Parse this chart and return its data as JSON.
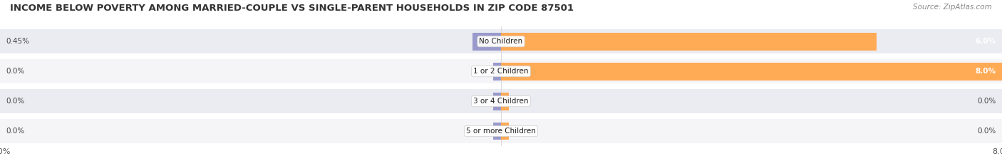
{
  "title": "INCOME BELOW POVERTY AMONG MARRIED-COUPLE VS SINGLE-PARENT HOUSEHOLDS IN ZIP CODE 87501",
  "source": "Source: ZipAtlas.com",
  "categories": [
    "No Children",
    "1 or 2 Children",
    "3 or 4 Children",
    "5 or more Children"
  ],
  "married_values": [
    0.45,
    0.0,
    0.0,
    0.0
  ],
  "single_values": [
    6.0,
    8.0,
    0.0,
    0.0
  ],
  "married_color": "#9999cc",
  "single_color": "#ffaa55",
  "xlim": 8.0,
  "row_bg_even": "#ebebf2",
  "row_bg_odd": "#f5f5f8",
  "title_fontsize": 9.5,
  "source_fontsize": 7.5,
  "value_fontsize": 7.5,
  "category_fontsize": 7.5,
  "tick_fontsize": 8,
  "background_color": "#ffffff",
  "married_value_labels": [
    "0.45%",
    "0.0%",
    "0.0%",
    "0.0%"
  ],
  "single_value_labels": [
    "6.0%",
    "8.0%",
    "0.0%",
    "0.0%"
  ]
}
